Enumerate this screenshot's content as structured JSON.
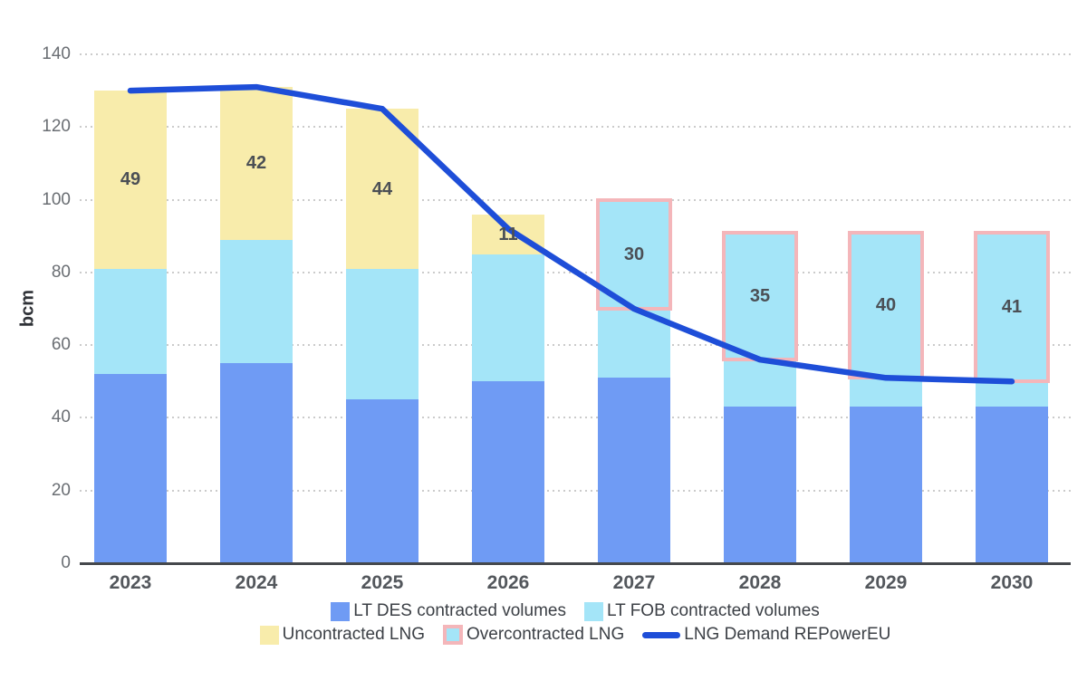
{
  "colors": {
    "des_blue": "#6f9bf4",
    "fob_cyan": "#a4e5f8",
    "uncontracted_yellow": "#f8ecab",
    "overcontracted_border_pink": "#f4b6ba",
    "demand_line_blue": "#1e4ed8",
    "grid": "#cbcbcb",
    "axis": "#45484c",
    "tick_text": "#6a6e73",
    "value_text": "#4b4f55",
    "year_text": "#53575c",
    "legend_text": "#3c4046"
  },
  "chart_data": {
    "type": "bar",
    "stacked": true,
    "title": "",
    "ylabel": "bcm",
    "xlabel": "",
    "ylim": [
      0,
      140
    ],
    "y_ticks": [
      0,
      20,
      40,
      60,
      80,
      100,
      120,
      140
    ],
    "grid": "dotted-horizontal",
    "legend_position": "bottom",
    "categories": [
      "2023",
      "2024",
      "2025",
      "2026",
      "2027",
      "2028",
      "2029",
      "2030"
    ],
    "series_meta": [
      {
        "name": "LT DES contracted volumes",
        "color_key": "des_blue"
      },
      {
        "name": "LT FOB contracted volumes",
        "color_key": "fob_cyan"
      },
      {
        "name": "Uncontracted LNG",
        "color_key": "uncontracted_yellow"
      }
    ],
    "overcontracted_meta": {
      "name": "Overcontracted LNG",
      "fill_key": "fob_cyan",
      "border_key": "overcontracted_border_pink"
    },
    "line": {
      "name": "LNG Demand REPowerEU",
      "color_key": "demand_line_blue",
      "values": [
        130,
        131,
        125,
        92,
        70,
        56,
        51,
        50
      ]
    },
    "bars": [
      {
        "year": "2023",
        "lt_des": 52,
        "lt_fob": 29,
        "uncontracted": 49,
        "label": "49"
      },
      {
        "year": "2024",
        "lt_des": 55,
        "lt_fob": 34,
        "uncontracted": 42,
        "label": "42"
      },
      {
        "year": "2025",
        "lt_des": 45,
        "lt_fob": 36,
        "uncontracted": 44,
        "label": "44"
      },
      {
        "year": "2026",
        "lt_des": 50,
        "lt_fob": 35,
        "uncontracted": 11,
        "label": "11"
      },
      {
        "year": "2027",
        "lt_des": 51,
        "lt_fob": 49,
        "uncontracted": 0,
        "label": "30",
        "overcontracted": {
          "value": 30,
          "from": 70,
          "to": 100
        }
      },
      {
        "year": "2028",
        "lt_des": 43,
        "lt_fob": 48,
        "uncontracted": 0,
        "label": "35",
        "overcontracted": {
          "value": 35,
          "from": 56,
          "to": 91
        }
      },
      {
        "year": "2029",
        "lt_des": 43,
        "lt_fob": 48,
        "uncontracted": 0,
        "label": "40",
        "overcontracted": {
          "value": 40,
          "from": 51,
          "to": 91
        }
      },
      {
        "year": "2030",
        "lt_des": 43,
        "lt_fob": 48,
        "uncontracted": 0,
        "label": "41",
        "overcontracted": {
          "value": 41,
          "from": 50,
          "to": 91
        }
      }
    ]
  }
}
